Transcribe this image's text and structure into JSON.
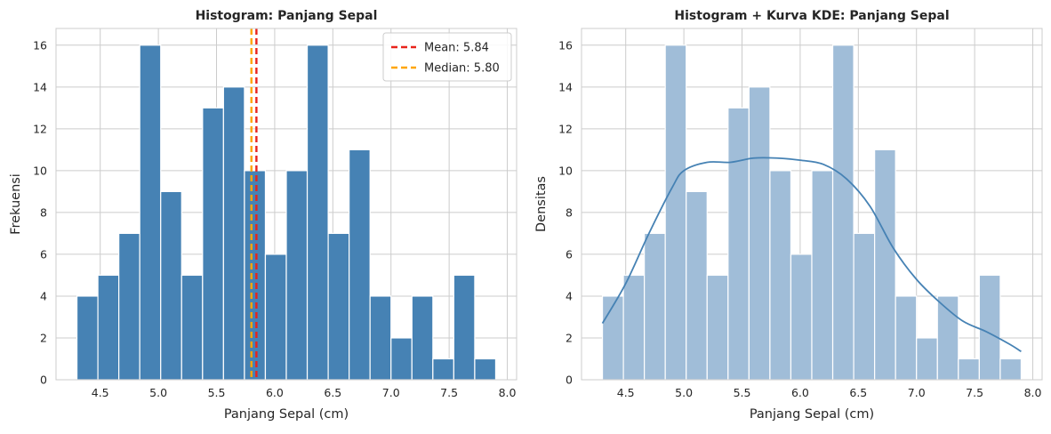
{
  "chart_data": [
    {
      "type": "bar",
      "title": "Histogram: Panjang Sepal",
      "xlabel": "Panjang Sepal (cm)",
      "ylabel": "Frekuensi",
      "bin_edges": [
        4.3,
        4.48,
        4.66,
        4.84,
        5.02,
        5.2,
        5.38,
        5.56,
        5.74,
        5.92,
        6.1,
        6.28,
        6.46,
        6.64,
        6.82,
        7.0,
        7.18,
        7.36,
        7.54,
        7.72,
        7.9
      ],
      "values": [
        4,
        5,
        7,
        16,
        9,
        5,
        13,
        14,
        10,
        6,
        10,
        16,
        7,
        11,
        4,
        2,
        4,
        1,
        5,
        1
      ],
      "xlim": [
        4.12,
        8.08
      ],
      "ylim": [
        0,
        16.8
      ],
      "xticks": [
        "4.5",
        "5.0",
        "5.5",
        "6.0",
        "6.5",
        "7.0",
        "7.5",
        "8.0"
      ],
      "yticks": [
        "0",
        "2",
        "4",
        "6",
        "8",
        "10",
        "12",
        "14",
        "16"
      ],
      "bar_color": "#4682b4",
      "grid": true,
      "legend_position": "top-right",
      "lines": [
        {
          "label": "Mean: 5.84",
          "x": 5.843,
          "color": "#e8231b",
          "style": "dashed"
        },
        {
          "label": "Median: 5.80",
          "x": 5.8,
          "color": "#ffa500",
          "style": "dashed"
        }
      ]
    },
    {
      "type": "bar",
      "title": "Histogram + Kurva KDE: Panjang Sepal",
      "xlabel": "Panjang Sepal (cm)",
      "ylabel": "Densitas",
      "bin_edges": [
        4.3,
        4.48,
        4.66,
        4.84,
        5.02,
        5.2,
        5.38,
        5.56,
        5.74,
        5.92,
        6.1,
        6.28,
        6.46,
        6.64,
        6.82,
        7.0,
        7.18,
        7.36,
        7.54,
        7.72,
        7.9
      ],
      "values": [
        4,
        5,
        7,
        16,
        9,
        5,
        13,
        14,
        10,
        6,
        10,
        16,
        7,
        11,
        4,
        2,
        4,
        1,
        5,
        1
      ],
      "xlim": [
        4.12,
        8.08
      ],
      "ylim": [
        0,
        16.8
      ],
      "xticks": [
        "4.5",
        "5.0",
        "5.5",
        "6.0",
        "6.5",
        "7.0",
        "7.5",
        "8.0"
      ],
      "yticks": [
        "0",
        "2",
        "4",
        "6",
        "8",
        "10",
        "12",
        "14",
        "16"
      ],
      "bar_color": "#a0bdd8",
      "grid": true,
      "kde": {
        "color": "#4682b4",
        "x": [
          4.3,
          4.5,
          4.7,
          4.9,
          5.0,
          5.2,
          5.4,
          5.6,
          5.8,
          6.0,
          6.2,
          6.4,
          6.6,
          6.8,
          7.0,
          7.2,
          7.4,
          7.6,
          7.8,
          7.9
        ],
        "y": [
          2.7,
          4.6,
          7.0,
          9.2,
          10.0,
          10.4,
          10.4,
          10.6,
          10.6,
          10.5,
          10.3,
          9.6,
          8.3,
          6.3,
          4.8,
          3.7,
          2.8,
          2.3,
          1.7,
          1.35
        ]
      }
    }
  ]
}
